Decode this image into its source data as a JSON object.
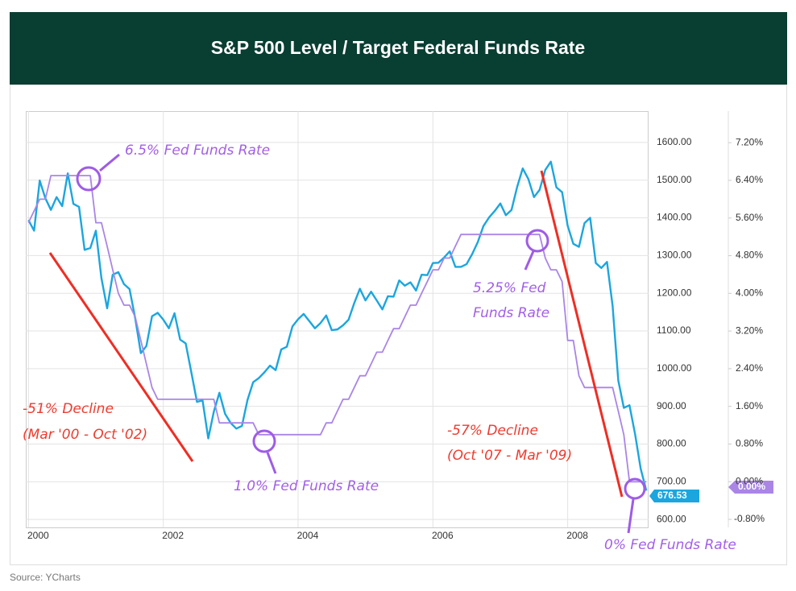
{
  "chart_data": {
    "type": "line",
    "title": "S&P 500 Level / Target Federal Funds Rate",
    "source": "Source: YCharts",
    "x": [
      2000,
      2000.083,
      2000.167,
      2000.25,
      2000.333,
      2000.417,
      2000.5,
      2000.583,
      2000.667,
      2000.75,
      2000.833,
      2000.917,
      2001,
      2001.083,
      2001.167,
      2001.25,
      2001.333,
      2001.417,
      2001.5,
      2001.583,
      2001.667,
      2001.75,
      2001.833,
      2001.917,
      2002,
      2002.083,
      2002.167,
      2002.25,
      2002.333,
      2002.417,
      2002.5,
      2002.583,
      2002.667,
      2002.75,
      2002.833,
      2002.917,
      2003,
      2003.083,
      2003.167,
      2003.25,
      2003.333,
      2003.417,
      2003.5,
      2003.583,
      2003.667,
      2003.75,
      2003.833,
      2003.917,
      2004,
      2004.083,
      2004.167,
      2004.25,
      2004.333,
      2004.417,
      2004.5,
      2004.583,
      2004.667,
      2004.75,
      2004.833,
      2004.917,
      2005,
      2005.083,
      2005.167,
      2005.25,
      2005.333,
      2005.417,
      2005.5,
      2005.583,
      2005.667,
      2005.75,
      2005.833,
      2005.917,
      2006,
      2006.083,
      2006.167,
      2006.25,
      2006.333,
      2006.417,
      2006.5,
      2006.583,
      2006.667,
      2006.75,
      2006.833,
      2006.917,
      2007,
      2007.083,
      2007.167,
      2007.25,
      2007.333,
      2007.417,
      2007.5,
      2007.583,
      2007.667,
      2007.75,
      2007.833,
      2007.917,
      2008,
      2008.083,
      2008.167,
      2008.25,
      2008.333,
      2008.417,
      2008.5,
      2008.583,
      2008.667,
      2008.75,
      2008.833,
      2008.917,
      2009,
      2009.083,
      2009.167
    ],
    "series": [
      {
        "color": "#1ba6df",
        "axis": "y",
        "values": [
          1394,
          1366,
          1499,
          1452,
          1421,
          1455,
          1431,
          1518,
          1437,
          1429,
          1315,
          1320,
          1366,
          1240,
          1160,
          1249,
          1256,
          1224,
          1211,
          1134,
          1041,
          1060,
          1139,
          1148,
          1130,
          1107,
          1147,
          1077,
          1067,
          990,
          912,
          916,
          815,
          886,
          936,
          880,
          856,
          841,
          848,
          917,
          964,
          975,
          990,
          1008,
          996,
          1051,
          1058,
          1112,
          1131,
          1145,
          1126,
          1107,
          1121,
          1141,
          1102,
          1104,
          1115,
          1130,
          1174,
          1212,
          1181,
          1204,
          1181,
          1157,
          1192,
          1191,
          1234,
          1220,
          1229,
          1207,
          1249,
          1248,
          1280,
          1281,
          1295,
          1311,
          1270,
          1270,
          1277,
          1304,
          1336,
          1378,
          1401,
          1418,
          1438,
          1407,
          1421,
          1482,
          1531,
          1503,
          1455,
          1474,
          1527,
          1549,
          1481,
          1468,
          1379,
          1331,
          1323,
          1386,
          1400,
          1280,
          1267,
          1283,
          1166,
          969,
          896,
          903,
          826,
          735,
          676.53
        ]
      },
      {
        "color": "#aa85e6",
        "axis": "y2",
        "end_label": "0.00%",
        "values": [
          5.5,
          5.75,
          6.0,
          6.0,
          6.5,
          6.5,
          6.5,
          6.5,
          6.5,
          6.5,
          6.5,
          6.5,
          5.5,
          5.5,
          5.0,
          4.5,
          4.0,
          3.75,
          3.75,
          3.5,
          3.0,
          2.5,
          2.0,
          1.75,
          1.75,
          1.75,
          1.75,
          1.75,
          1.75,
          1.75,
          1.75,
          1.75,
          1.75,
          1.75,
          1.25,
          1.25,
          1.25,
          1.25,
          1.25,
          1.25,
          1.25,
          1.0,
          1.0,
          1.0,
          1.0,
          1.0,
          1.0,
          1.0,
          1.0,
          1.0,
          1.0,
          1.0,
          1.0,
          1.25,
          1.25,
          1.5,
          1.75,
          1.75,
          2.0,
          2.25,
          2.25,
          2.5,
          2.75,
          2.75,
          3.0,
          3.25,
          3.25,
          3.5,
          3.75,
          3.75,
          4.0,
          4.25,
          4.5,
          4.5,
          4.75,
          4.75,
          5.0,
          5.25,
          5.25,
          5.25,
          5.25,
          5.25,
          5.25,
          5.25,
          5.25,
          5.25,
          5.25,
          5.25,
          5.25,
          5.25,
          5.25,
          5.25,
          4.75,
          4.5,
          4.5,
          4.25,
          3.0,
          3.0,
          2.25,
          2.0,
          2.0,
          2.0,
          2.0,
          2.0,
          2.0,
          1.5,
          1.0,
          0.0,
          0.0,
          0.0,
          0.0
        ]
      }
    ],
    "xlim": [
      1999.96,
      2009.2
    ],
    "xticks": [
      2000,
      2002,
      2004,
      2006,
      2008
    ],
    "ylim": [
      579,
      1683
    ],
    "yticks": [
      {
        "value": 600,
        "label": "600.00"
      },
      {
        "value": 700,
        "label": "700.00"
      },
      {
        "value": 800,
        "label": "800.00"
      },
      {
        "value": 900,
        "label": "900.00"
      },
      {
        "value": 1000,
        "label": "1000.00"
      },
      {
        "value": 1100,
        "label": "1100.00"
      },
      {
        "value": 1200,
        "label": "1200.00"
      },
      {
        "value": 1300,
        "label": "1300.00"
      },
      {
        "value": 1400,
        "label": "1400.00"
      },
      {
        "value": 1500,
        "label": "1500.00"
      },
      {
        "value": 1600,
        "label": "1600.00"
      }
    ],
    "y2lim": [
      -0.97,
      7.87
    ],
    "y2ticks": [
      {
        "value": -0.8,
        "label": "-0.80%"
      },
      {
        "value": 0,
        "label": "0.00%"
      },
      {
        "value": 0.8,
        "label": "0.80%"
      },
      {
        "value": 1.6,
        "label": "1.60%"
      },
      {
        "value": 2.4,
        "label": "2.40%"
      },
      {
        "value": 3.2,
        "label": "3.20%"
      },
      {
        "value": 4.0,
        "label": "4.00%"
      },
      {
        "value": 4.8,
        "label": "4.80%"
      },
      {
        "value": 5.6,
        "label": "5.60%"
      },
      {
        "value": 6.4,
        "label": "6.40%"
      },
      {
        "value": 7.2,
        "label": "7.20%"
      }
    ],
    "grid": true,
    "annotations": [
      {
        "text": "6.5% Fed Funds Rate",
        "color": "#a25ee8"
      },
      {
        "text": "5.25% Fed",
        "color": "#a25ee8"
      },
      {
        "text": "Funds Rate",
        "color": "#a25ee8"
      },
      {
        "text": "1.0% Fed Funds Rate",
        "color": "#a25ee8"
      },
      {
        "text": "0% Fed Funds Rate",
        "color": "#a25ee8"
      },
      {
        "text": "-51% Decline",
        "color": "#ee3b2e"
      },
      {
        "text": "(Mar '00 - Oct '02)",
        "color": "#ee3b2e"
      },
      {
        "text": "-57% Decline",
        "color": "#ee3b2e"
      },
      {
        "text": "(Oct '07 - Mar '09)",
        "color": "#ee3b2e"
      }
    ]
  }
}
